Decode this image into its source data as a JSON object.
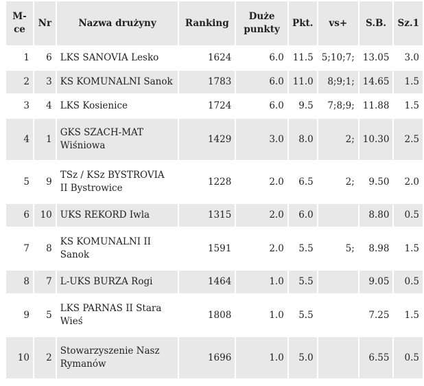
{
  "headers": [
    "M-ce",
    "Nr",
    "Nazwa drużyny",
    "Ranking",
    "Duże punkty",
    "Pkt.",
    "vs+",
    "S.B.",
    "Sz.1"
  ],
  "rows": [
    [
      "1",
      "6",
      "LKS SANOVIA Lesko",
      "1624",
      "6.0",
      "11.5",
      "5;10;7;",
      "13.05",
      "3.0"
    ],
    [
      "2",
      "3",
      "KS KOMUNALNI Sanok",
      "1783",
      "6.0",
      "11.0",
      "8;9;1;",
      "14.65",
      "1.5"
    ],
    [
      "3",
      "4",
      "LKS Kosienice",
      "1724",
      "6.0",
      "9.5",
      "7;8;9;",
      "11.88",
      "1.5"
    ],
    [
      "4",
      "1",
      "GKS SZACH-MAT Wiśniowa",
      "1429",
      "3.0",
      "8.0",
      "2;",
      "10.30",
      "2.5"
    ],
    [
      "5",
      "9",
      "TSz / KSz BYSTROVIA II Bystrowice",
      "1228",
      "2.0",
      "6.5",
      "2;",
      "9.50",
      "2.0"
    ],
    [
      "6",
      "10",
      "UKS REKORD Iwla",
      "1315",
      "2.0",
      "6.0",
      "",
      "8.80",
      "0.5"
    ],
    [
      "7",
      "8",
      "KS KOMUNALNI II Sanok",
      "1591",
      "2.0",
      "5.5",
      "5;",
      "8.98",
      "1.5"
    ],
    [
      "8",
      "7",
      "L-UKS BURZA Rogi",
      "1464",
      "1.0",
      "5.5",
      "",
      "9.05",
      "0.5"
    ],
    [
      "9",
      "5",
      "LKS PARNAS II Stara Wieś",
      "1808",
      "1.0",
      "5.5",
      "",
      "7.25",
      "1.5"
    ],
    [
      "10",
      "2",
      "Stowarzyszenie Nasz Rymanów",
      "1696",
      "1.0",
      "5.0",
      "",
      "6.55",
      "0.5"
    ]
  ]
}
